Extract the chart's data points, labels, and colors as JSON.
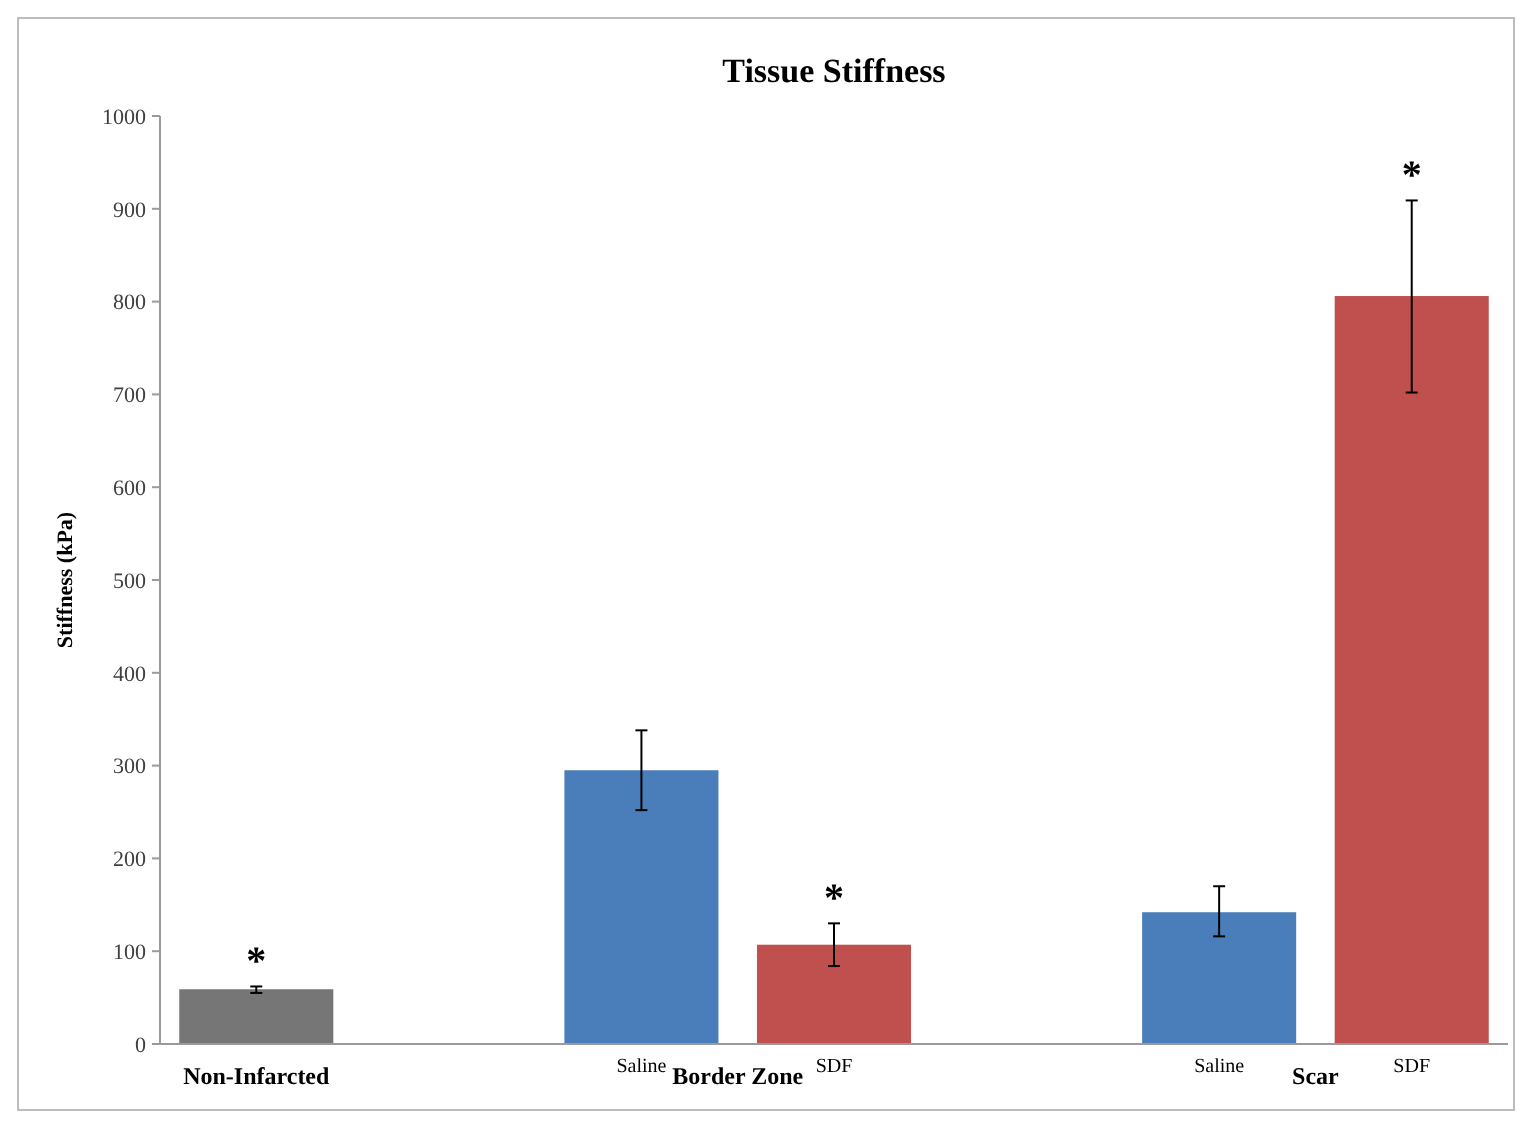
{
  "chart_data": {
    "type": "bar",
    "title": "Tissue Stiffness",
    "ylabel": "Stiffness (kPa)",
    "categories": [
      "Non-Infarcted",
      null,
      "Saline",
      "SDF",
      null,
      "Saline",
      "SDF"
    ],
    "values": [
      59,
      null,
      295,
      107,
      null,
      142,
      806
    ],
    "colors": [
      "#767676",
      null,
      "#4a7eba",
      "#c0504d",
      null,
      "#4a7eba",
      "#c0504d"
    ],
    "errors": [
      [
        55,
        62
      ],
      null,
      [
        252,
        338
      ],
      [
        84,
        130
      ],
      null,
      [
        116,
        170
      ],
      [
        702,
        909
      ]
    ],
    "value_labels": [
      "*",
      null,
      null,
      "*",
      null,
      null,
      "*"
    ],
    "annotations": [
      "Border Zone",
      "Scar"
    ],
    "ylim": [
      0,
      1000
    ],
    "yticks": [
      0,
      100,
      200,
      300,
      400,
      500,
      600,
      700,
      800,
      900,
      1000
    ],
    "grid": false
  }
}
